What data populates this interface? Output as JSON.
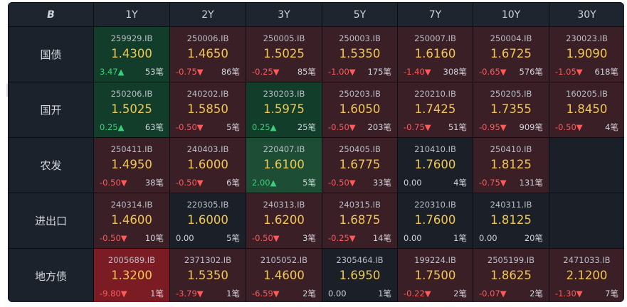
{
  "header": {
    "logo_text": "B",
    "terms": [
      "1Y",
      "2Y",
      "3Y",
      "5Y",
      "7Y",
      "10Y",
      "30Y"
    ]
  },
  "rows": [
    {
      "name": "国债",
      "cells": [
        {
          "code": "259929.IB",
          "price": "1.4300",
          "chg": "3.47▲",
          "dir": "up",
          "count": "53笔",
          "tone": "green"
        },
        {
          "code": "250006.IB",
          "price": "1.4650",
          "chg": "-0.75▼",
          "dir": "down",
          "count": "86笔",
          "tone": "red"
        },
        {
          "code": "250005.IB",
          "price": "1.5025",
          "chg": "-0.25▼",
          "dir": "down",
          "count": "85笔",
          "tone": "red"
        },
        {
          "code": "250003.IB",
          "price": "1.5350",
          "chg": "-1.00▼",
          "dir": "down",
          "count": "175笔",
          "tone": "red"
        },
        {
          "code": "250007.IB",
          "price": "1.6160",
          "chg": "-1.40▼",
          "dir": "down",
          "count": "308笔",
          "tone": "red"
        },
        {
          "code": "250004.IB",
          "price": "1.6725",
          "chg": "-0.65▼",
          "dir": "down",
          "count": "576笔",
          "tone": "red"
        },
        {
          "code": "230023.IB",
          "price": "1.9090",
          "chg": "-1.05▼",
          "dir": "down",
          "count": "618笔",
          "tone": "red"
        }
      ]
    },
    {
      "name": "国开",
      "cells": [
        {
          "code": "250206.IB",
          "price": "1.5025",
          "chg": "0.25▲",
          "dir": "up",
          "count": "63笔",
          "tone": "green"
        },
        {
          "code": "240202.IB",
          "price": "1.5850",
          "chg": "-0.50▼",
          "dir": "down",
          "count": "5笔",
          "tone": "red"
        },
        {
          "code": "230203.IB",
          "price": "1.5975",
          "chg": "0.25▲",
          "dir": "up",
          "count": "25笔",
          "tone": "green"
        },
        {
          "code": "250203.IB",
          "price": "1.6050",
          "chg": "-0.50▼",
          "dir": "down",
          "count": "203笔",
          "tone": "red"
        },
        {
          "code": "220210.IB",
          "price": "1.7425",
          "chg": "-0.75▼",
          "dir": "down",
          "count": "51笔",
          "tone": "red"
        },
        {
          "code": "250205.IB",
          "price": "1.7355",
          "chg": "-0.95▼",
          "dir": "down",
          "count": "909笔",
          "tone": "red"
        },
        {
          "code": "160205.IB",
          "price": "1.8450",
          "chg": "-0.50▼",
          "dir": "down",
          "count": "4笔",
          "tone": "red"
        }
      ]
    },
    {
      "name": "农发",
      "cells": [
        {
          "code": "250411.IB",
          "price": "1.4950",
          "chg": "-0.50▼",
          "dir": "down",
          "count": "38笔",
          "tone": "red"
        },
        {
          "code": "240403.IB",
          "price": "1.6000",
          "chg": "-0.50▼",
          "dir": "down",
          "count": "6笔",
          "tone": "red"
        },
        {
          "code": "220407.IB",
          "price": "1.6100",
          "chg": "2.00▲",
          "dir": "up",
          "count": "5笔",
          "tone": "green2"
        },
        {
          "code": "250405.IB",
          "price": "1.6775",
          "chg": "-0.50▼",
          "dir": "down",
          "count": "33笔",
          "tone": "red"
        },
        {
          "code": "210410.IB",
          "price": "1.7600",
          "chg": "0.00",
          "dir": "flat",
          "count": "4笔",
          "tone": "neutral"
        },
        {
          "code": "250410.IB",
          "price": "1.8125",
          "chg": "-0.75▼",
          "dir": "down",
          "count": "131笔",
          "tone": "red"
        },
        {
          "empty": true
        }
      ]
    },
    {
      "name": "进出口",
      "cells": [
        {
          "code": "240314.IB",
          "price": "1.4600",
          "chg": "-0.50▼",
          "dir": "down",
          "count": "10笔",
          "tone": "red"
        },
        {
          "code": "220305.IB",
          "price": "1.6000",
          "chg": "0.00",
          "dir": "flat",
          "count": "5笔",
          "tone": "neutral"
        },
        {
          "code": "240313.IB",
          "price": "1.6200",
          "chg": "-0.50▼",
          "dir": "down",
          "count": "3笔",
          "tone": "red"
        },
        {
          "code": "240315.IB",
          "price": "1.6875",
          "chg": "-0.25▼",
          "dir": "down",
          "count": "14笔",
          "tone": "red"
        },
        {
          "code": "220310.IB",
          "price": "1.7600",
          "chg": "0.00",
          "dir": "flat",
          "count": "1笔",
          "tone": "neutral"
        },
        {
          "code": "240311.IB",
          "price": "1.8125",
          "chg": "0.00",
          "dir": "flat",
          "count": "20笔",
          "tone": "neutral"
        },
        {
          "empty": true
        }
      ]
    },
    {
      "name": "地方债",
      "cells": [
        {
          "code": "2005689.IB",
          "price": "1.3200",
          "chg": "-9.80▼",
          "dir": "down",
          "count": "1笔",
          "tone": "redhi"
        },
        {
          "code": "2371302.IB",
          "price": "1.5350",
          "chg": "-3.79▼",
          "dir": "down",
          "count": "1笔",
          "tone": "red"
        },
        {
          "code": "2105052.IB",
          "price": "1.4600",
          "chg": "-6.59▼",
          "dir": "down",
          "count": "2笔",
          "tone": "red"
        },
        {
          "code": "2305464.IB",
          "price": "1.6950",
          "chg": "0.00",
          "dir": "flat",
          "count": "1笔",
          "tone": "neutral"
        },
        {
          "code": "199224.IB",
          "price": "1.7500",
          "chg": "-0.22▼",
          "dir": "down",
          "count": "2笔",
          "tone": "red"
        },
        {
          "code": "2505199.IB",
          "price": "1.8625",
          "chg": "-0.07▼",
          "dir": "down",
          "count": "2笔",
          "tone": "red"
        },
        {
          "code": "2471033.IB",
          "price": "2.1200",
          "chg": "-1.30▼",
          "dir": "down",
          "count": "7笔",
          "tone": "red"
        }
      ]
    }
  ],
  "colors": {
    "up": "#3ad07a",
    "down": "#ff5a5a",
    "price": "#f3c74e"
  }
}
